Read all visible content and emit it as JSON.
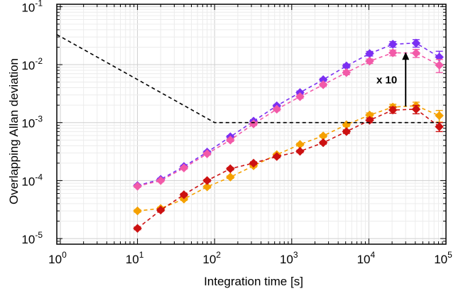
{
  "chart_data": {
    "type": "scatter",
    "xlabel": "Integration time [s]",
    "ylabel": "Overlapping Allan deviation",
    "x_scale": "log",
    "y_scale": "log",
    "xlim": [
      0.9,
      100000
    ],
    "ylim": [
      8e-06,
      0.11
    ],
    "x_ticks": [
      {
        "value": 1,
        "base": "10",
        "exp": "0"
      },
      {
        "value": 10,
        "base": "10",
        "exp": "1"
      },
      {
        "value": 100,
        "base": "10",
        "exp": "2"
      },
      {
        "value": 1000,
        "base": "10",
        "exp": "3"
      },
      {
        "value": 10000,
        "base": "10",
        "exp": "4"
      },
      {
        "value": 100000,
        "base": "10",
        "exp": "5"
      }
    ],
    "y_ticks": [
      {
        "value": 1e-05,
        "base": "10",
        "exp": "-5"
      },
      {
        "value": 0.0001,
        "base": "10",
        "exp": "-4"
      },
      {
        "value": 0.001,
        "base": "10",
        "exp": "-3"
      },
      {
        "value": 0.01,
        "base": "10",
        "exp": "-2"
      },
      {
        "value": 0.1,
        "base": "10",
        "exp": "-1"
      }
    ],
    "grid": true,
    "legend": "none",
    "series": [
      {
        "color": "#7b2ff2",
        "marker": "diamond",
        "line": "dashed",
        "x": [
          10,
          20,
          40,
          80,
          160,
          320,
          640,
          1280,
          2560,
          5120,
          10240,
          20480,
          40960,
          81920
        ],
        "y": [
          8.2e-05,
          0.000105,
          0.000175,
          0.00031,
          0.00057,
          0.00106,
          0.00195,
          0.0033,
          0.0055,
          0.0095,
          0.0155,
          0.0225,
          0.0235,
          0.0135
        ],
        "err": [
          3.5e-06,
          4.5e-06,
          8e-06,
          1.5e-05,
          3e-05,
          6e-05,
          0.0001,
          0.0002,
          0.0003,
          0.0007,
          0.0014,
          0.0025,
          0.0035,
          0.0035
        ]
      },
      {
        "color": "#f25aa8",
        "marker": "diamond",
        "line": "dashed",
        "x": [
          10,
          20,
          40,
          80,
          160,
          320,
          640,
          1280,
          2560,
          5120,
          10240,
          20480,
          40960,
          81920
        ],
        "y": [
          8e-05,
          0.0001,
          0.000165,
          0.00029,
          0.0005,
          0.00095,
          0.0017,
          0.0028,
          0.0045,
          0.0073,
          0.0115,
          0.016,
          0.0158,
          0.0098
        ],
        "err": [
          3.5e-06,
          4.5e-06,
          8e-06,
          1.4e-05,
          2.8e-05,
          5.5e-05,
          0.0001,
          0.00018,
          0.00028,
          0.0006,
          0.001,
          0.0018,
          0.0025,
          0.0025
        ]
      },
      {
        "color": "#f5a100",
        "marker": "diamond",
        "line": "dashed",
        "x": [
          10,
          20,
          40,
          80,
          160,
          320,
          640,
          1280,
          2560,
          5120,
          10240,
          20480,
          40960,
          81920
        ],
        "y": [
          3e-05,
          3.3e-05,
          4.8e-05,
          7.8e-05,
          0.000115,
          0.00018,
          0.00028,
          0.00042,
          0.00059,
          0.00092,
          0.00135,
          0.00185,
          0.00195,
          0.00132
        ],
        "err": [
          1.5e-06,
          1.6e-06,
          2.5e-06,
          4e-06,
          6e-06,
          9e-06,
          1.5e-05,
          2.2e-05,
          3e-05,
          6e-05,
          0.00012,
          0.00022,
          0.0003,
          0.0003
        ]
      },
      {
        "color": "#cc1111",
        "marker": "diamond",
        "line": "dashed",
        "x": [
          10,
          20,
          40,
          80,
          160,
          320,
          640,
          1280,
          2560,
          5120,
          10240,
          20480,
          40960,
          81920
        ],
        "y": [
          1.5e-05,
          3.1e-05,
          5.7e-05,
          0.0001,
          0.00016,
          0.0002,
          0.00026,
          0.00032,
          0.00045,
          0.0007,
          0.0011,
          0.00165,
          0.0017,
          0.00085
        ],
        "err": [
          8e-07,
          1.5e-06,
          3e-06,
          5e-06,
          8e-06,
          1e-05,
          1.3e-05,
          1.6e-05,
          2.5e-05,
          5e-05,
          0.0001,
          0.0002,
          0.00028,
          0.00015
        ]
      },
      {
        "color": "#000000",
        "marker": "none",
        "line": "dashed",
        "x": [
          0.9,
          100,
          80000
        ],
        "y": [
          0.033,
          0.001,
          0.001
        ]
      }
    ],
    "annotations": [
      {
        "text": "x 10",
        "arrow_x": 30000,
        "arrow_from_y": 0.0019,
        "arrow_to_y": 0.0165
      }
    ]
  }
}
